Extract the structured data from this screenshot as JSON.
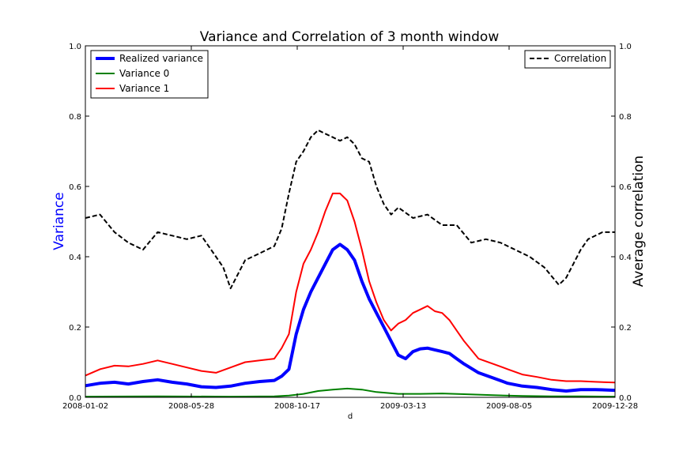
{
  "chart_data": {
    "type": "line",
    "title": "Variance and Correlation of 3 month window",
    "xlabel": "d",
    "ylabel_left": "Variance",
    "ylabel_right": "Average correlation",
    "x_tick_labels": [
      "2008-01-02",
      "2008-05-28",
      "2008-10-17",
      "2009-03-13",
      "2009-08-05",
      "2009-12-28"
    ],
    "xlim": [
      "2008-01-02",
      "2009-12-28"
    ],
    "ylim_left": [
      0.0,
      1.0
    ],
    "ylim_right": [
      0.0,
      1.0
    ],
    "y_ticks_left": [
      "0.0",
      "0.2",
      "0.4",
      "0.6",
      "0.8",
      "1.0"
    ],
    "y_ticks_right": [
      "0.0",
      "0.2",
      "0.4",
      "0.6",
      "0.8",
      "1.0"
    ],
    "grid": false,
    "legend_left_placement": "top-left",
    "legend_right_placement": "top-right",
    "series": [
      {
        "name": "Realized variance",
        "axis": "left",
        "color": "#0000ff",
        "style": "solid-thick",
        "x": [
          "2008-01-02",
          "2008-01-22",
          "2008-02-11",
          "2008-03-01",
          "2008-03-21",
          "2008-04-10",
          "2008-04-30",
          "2008-05-20",
          "2008-06-09",
          "2008-06-29",
          "2008-07-19",
          "2008-08-08",
          "2008-08-28",
          "2008-09-17",
          "2008-09-27",
          "2008-10-07",
          "2008-10-17",
          "2008-10-27",
          "2008-11-06",
          "2008-11-16",
          "2008-11-26",
          "2008-12-06",
          "2008-12-16",
          "2008-12-26",
          "2009-01-05",
          "2009-01-15",
          "2009-01-25",
          "2009-02-04",
          "2009-02-14",
          "2009-02-24",
          "2009-03-06",
          "2009-03-16",
          "2009-03-26",
          "2009-04-05",
          "2009-04-15",
          "2009-04-25",
          "2009-05-05",
          "2009-05-15",
          "2009-05-25",
          "2009-06-04",
          "2009-06-24",
          "2009-07-14",
          "2009-08-03",
          "2009-08-23",
          "2009-09-12",
          "2009-10-02",
          "2009-10-22",
          "2009-11-11",
          "2009-12-01",
          "2009-12-28"
        ],
        "y": [
          0.033,
          0.04,
          0.043,
          0.038,
          0.045,
          0.05,
          0.043,
          0.038,
          0.03,
          0.028,
          0.032,
          0.04,
          0.045,
          0.048,
          0.06,
          0.08,
          0.18,
          0.25,
          0.3,
          0.34,
          0.38,
          0.42,
          0.435,
          0.42,
          0.39,
          0.33,
          0.28,
          0.24,
          0.2,
          0.16,
          0.12,
          0.11,
          0.13,
          0.138,
          0.14,
          0.135,
          0.13,
          0.125,
          0.11,
          0.095,
          0.07,
          0.055,
          0.04,
          0.032,
          0.028,
          0.022,
          0.018,
          0.022,
          0.022,
          0.02
        ]
      },
      {
        "name": "Variance 0",
        "axis": "left",
        "color": "#008000",
        "style": "solid",
        "x": [
          "2008-01-02",
          "2008-04-10",
          "2008-07-19",
          "2008-09-17",
          "2008-10-07",
          "2008-10-27",
          "2008-11-16",
          "2008-12-06",
          "2008-12-26",
          "2009-01-15",
          "2009-02-04",
          "2009-03-06",
          "2009-04-05",
          "2009-05-05",
          "2009-06-04",
          "2009-07-14",
          "2009-08-23",
          "2009-10-02",
          "2009-11-11",
          "2009-12-28"
        ],
        "y": [
          0.002,
          0.003,
          0.002,
          0.003,
          0.005,
          0.01,
          0.018,
          0.022,
          0.025,
          0.022,
          0.015,
          0.01,
          0.01,
          0.011,
          0.009,
          0.006,
          0.004,
          0.003,
          0.003,
          0.002
        ]
      },
      {
        "name": "Variance 1",
        "axis": "left",
        "color": "#ff0000",
        "style": "solid",
        "x": [
          "2008-01-02",
          "2008-01-22",
          "2008-02-11",
          "2008-03-01",
          "2008-03-21",
          "2008-04-10",
          "2008-04-30",
          "2008-05-20",
          "2008-06-09",
          "2008-06-29",
          "2008-07-19",
          "2008-08-08",
          "2008-08-28",
          "2008-09-17",
          "2008-09-27",
          "2008-10-07",
          "2008-10-17",
          "2008-10-27",
          "2008-11-06",
          "2008-11-16",
          "2008-11-26",
          "2008-12-06",
          "2008-12-16",
          "2008-12-26",
          "2009-01-05",
          "2009-01-15",
          "2009-01-25",
          "2009-02-04",
          "2009-02-14",
          "2009-02-24",
          "2009-03-06",
          "2009-03-16",
          "2009-03-26",
          "2009-04-05",
          "2009-04-15",
          "2009-04-25",
          "2009-05-05",
          "2009-05-15",
          "2009-05-25",
          "2009-06-04",
          "2009-06-24",
          "2009-07-14",
          "2009-08-03",
          "2009-08-23",
          "2009-09-12",
          "2009-10-02",
          "2009-10-22",
          "2009-11-11",
          "2009-12-01",
          "2009-12-28"
        ],
        "y": [
          0.062,
          0.08,
          0.09,
          0.088,
          0.095,
          0.105,
          0.095,
          0.085,
          0.075,
          0.07,
          0.085,
          0.1,
          0.105,
          0.11,
          0.14,
          0.18,
          0.3,
          0.38,
          0.42,
          0.47,
          0.53,
          0.58,
          0.58,
          0.56,
          0.5,
          0.42,
          0.33,
          0.27,
          0.22,
          0.19,
          0.21,
          0.22,
          0.24,
          0.25,
          0.26,
          0.245,
          0.24,
          0.22,
          0.19,
          0.16,
          0.11,
          0.095,
          0.08,
          0.065,
          0.058,
          0.05,
          0.046,
          0.046,
          0.044,
          0.042
        ]
      },
      {
        "name": "Correlation",
        "axis": "right",
        "color": "#000000",
        "style": "dashed",
        "x": [
          "2008-01-02",
          "2008-01-22",
          "2008-02-11",
          "2008-03-01",
          "2008-03-21",
          "2008-04-10",
          "2008-04-30",
          "2008-05-20",
          "2008-06-09",
          "2008-06-29",
          "2008-07-09",
          "2008-07-19",
          "2008-08-08",
          "2008-08-28",
          "2008-09-17",
          "2008-09-27",
          "2008-10-07",
          "2008-10-17",
          "2008-10-27",
          "2008-11-06",
          "2008-11-16",
          "2008-11-26",
          "2008-12-06",
          "2008-12-16",
          "2008-12-26",
          "2009-01-05",
          "2009-01-15",
          "2009-01-25",
          "2009-02-04",
          "2009-02-14",
          "2009-02-24",
          "2009-03-06",
          "2009-03-26",
          "2009-04-15",
          "2009-05-05",
          "2009-05-25",
          "2009-06-14",
          "2009-07-04",
          "2009-07-24",
          "2009-08-13",
          "2009-09-02",
          "2009-09-22",
          "2009-10-12",
          "2009-10-22",
          "2009-11-01",
          "2009-11-11",
          "2009-11-21",
          "2009-12-11",
          "2009-12-28"
        ],
        "y": [
          0.51,
          0.52,
          0.47,
          0.44,
          0.42,
          0.47,
          0.46,
          0.45,
          0.46,
          0.4,
          0.37,
          0.31,
          0.39,
          0.41,
          0.43,
          0.48,
          0.58,
          0.67,
          0.7,
          0.74,
          0.76,
          0.75,
          0.74,
          0.73,
          0.74,
          0.72,
          0.68,
          0.67,
          0.6,
          0.55,
          0.52,
          0.54,
          0.51,
          0.52,
          0.49,
          0.49,
          0.44,
          0.45,
          0.44,
          0.42,
          0.4,
          0.37,
          0.32,
          0.34,
          0.38,
          0.42,
          0.45,
          0.47,
          0.47
        ]
      }
    ]
  }
}
